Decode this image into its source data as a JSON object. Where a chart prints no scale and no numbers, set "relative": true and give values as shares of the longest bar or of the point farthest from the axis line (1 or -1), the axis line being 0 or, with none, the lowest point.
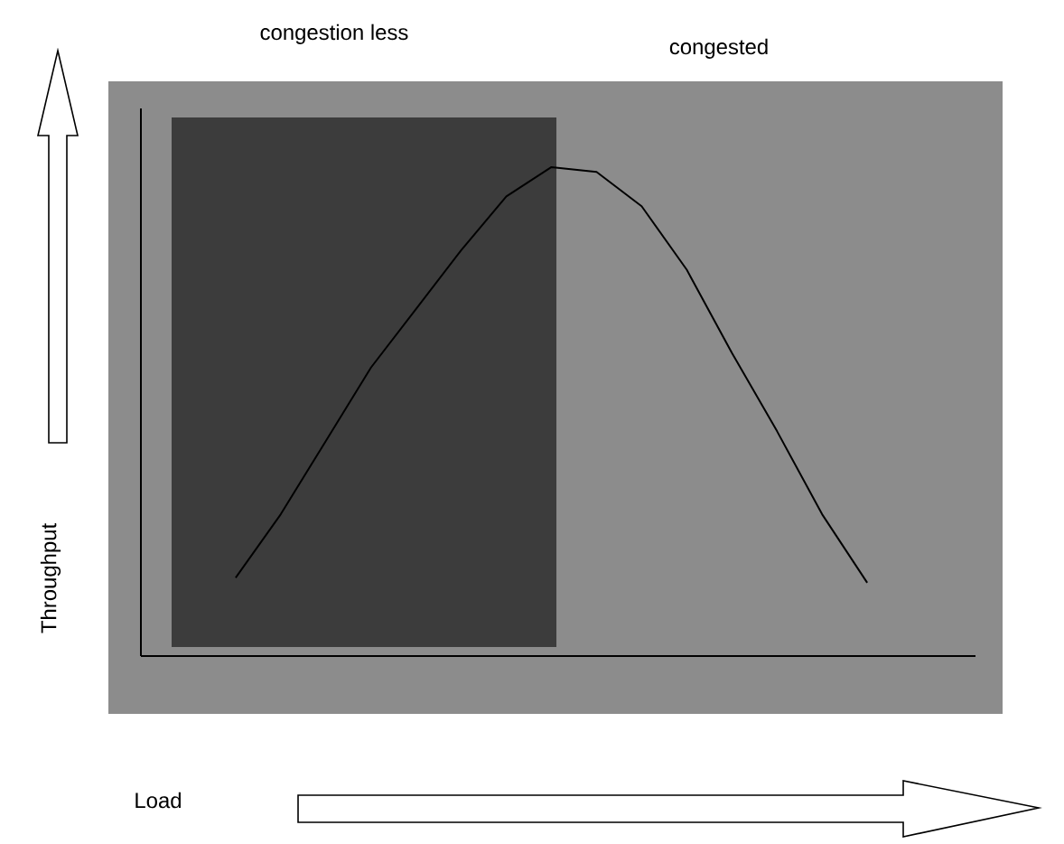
{
  "chart_data": {
    "type": "line",
    "relative": true,
    "annotations": [
      "congestion less",
      "congested",
      "Throughput",
      "Load"
    ],
    "categories": [
      null,
      null,
      null,
      null,
      null,
      null,
      null,
      null,
      null,
      null,
      null,
      null,
      null,
      null,
      null
    ],
    "values": [
      0.16,
      0.29,
      0.44,
      0.59,
      0.71,
      0.83,
      0.94,
      1,
      0.99,
      0.92,
      0.79,
      0.62,
      0.46,
      0.29,
      0.15
    ],
    "color": "#000000"
  }
}
